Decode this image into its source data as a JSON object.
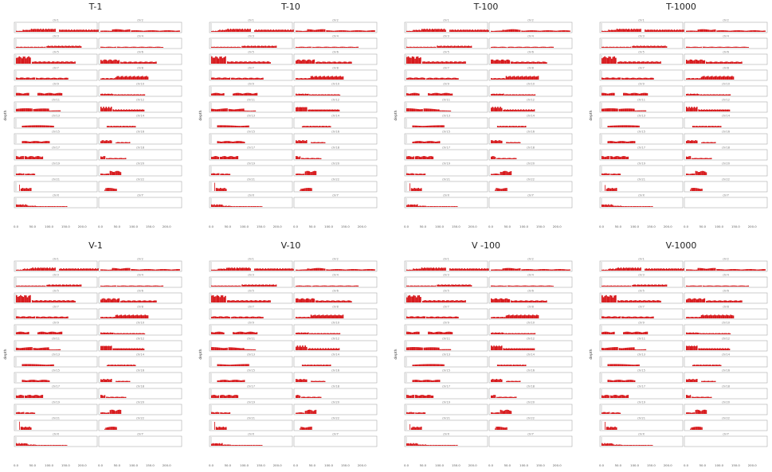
{
  "chart_data": [
    {
      "type": "bar",
      "title": "T-1",
      "xlabel": "Chromosome positon(Mb)",
      "ylabel": "depth"
    },
    {
      "type": "bar",
      "title": "T-10",
      "xlabel": "Chromosome position(Mb)",
      "ylabel": "depth"
    },
    {
      "type": "bar",
      "title": "T-100",
      "xlabel": "Chromosome position(Mb)",
      "ylabel": "depth"
    },
    {
      "type": "bar",
      "title": "T-1000",
      "xlabel": "Chromosome position(Mb)",
      "ylabel": "depth"
    },
    {
      "type": "bar",
      "title": "V-1",
      "xlabel": "Chromosome position(Mb)",
      "ylabel": "depth"
    },
    {
      "type": "bar",
      "title": "V-10",
      "xlabel": "Chromosome position(Mb)",
      "ylabel": "depth"
    },
    {
      "type": "bar",
      "title": "V -100",
      "xlabel": "Chromosome position(Mb)",
      "ylabel": "depth"
    },
    {
      "type": "bar",
      "title": "V-1000",
      "xlabel": "Chromosome position(Mb)",
      "ylabel": "depth"
    }
  ],
  "shared": {
    "xlim": [
      0,
      250
    ],
    "xticks": [
      "0.0",
      "50.0",
      "100.0",
      "150.0",
      "200.0"
    ],
    "bar_color": "#d7191c",
    "chromosomes": [
      {
        "name": "chr1",
        "segments": [
          [
            0,
            20,
            0.1
          ],
          [
            20,
            45,
            0.2
          ],
          [
            45,
            120,
            0.3
          ],
          [
            130,
            250,
            0.22
          ]
        ]
      },
      {
        "name": "chr2",
        "segments": [
          [
            0,
            35,
            0.12
          ],
          [
            35,
            90,
            0.25
          ],
          [
            92,
            240,
            0.15
          ]
        ]
      },
      {
        "name": "chr3",
        "segments": [
          [
            0,
            90,
            0.1
          ],
          [
            92,
            198,
            0.2
          ]
        ]
      },
      {
        "name": "chr4",
        "segments": [
          [
            0,
            48,
            0.1
          ],
          [
            50,
            190,
            0.1
          ]
        ]
      },
      {
        "name": "chr5",
        "segments": [
          [
            0,
            45,
            0.7
          ],
          [
            48,
            180,
            0.22
          ]
        ]
      },
      {
        "name": "chr6",
        "segments": [
          [
            0,
            58,
            0.4
          ],
          [
            60,
            170,
            0.2
          ]
        ]
      },
      {
        "name": "chr7",
        "segments": [
          [
            0,
            58,
            0.2
          ],
          [
            60,
            158,
            0.18
          ]
        ]
      },
      {
        "name": "chr8",
        "segments": [
          [
            0,
            45,
            0.15
          ],
          [
            45,
            145,
            0.35
          ]
        ]
      },
      {
        "name": "chr9",
        "segments": [
          [
            0,
            40,
            0.25
          ],
          [
            65,
            140,
            0.25
          ]
        ]
      },
      {
        "name": "chr10",
        "segments": [
          [
            0,
            40,
            0.18
          ],
          [
            41,
            135,
            0.12
          ]
        ]
      },
      {
        "name": "chr11",
        "segments": [
          [
            0,
            50,
            0.3
          ],
          [
            52,
            100,
            0.28
          ],
          [
            100,
            135,
            0.1
          ]
        ]
      },
      {
        "name": "chr12",
        "segments": [
          [
            0,
            35,
            0.45
          ],
          [
            37,
            133,
            0.2
          ]
        ]
      },
      {
        "name": "chr13",
        "segments": [
          [
            18,
            115,
            0.2
          ]
        ]
      },
      {
        "name": "chr14",
        "segments": [
          [
            19,
            107,
            0.15
          ]
        ]
      },
      {
        "name": "chr15",
        "segments": [
          [
            18,
            102,
            0.22
          ]
        ]
      },
      {
        "name": "chr16",
        "segments": [
          [
            0,
            35,
            0.3
          ],
          [
            46,
            90,
            0.12
          ]
        ]
      },
      {
        "name": "chr17",
        "segments": [
          [
            0,
            24,
            0.3
          ],
          [
            26,
            82,
            0.3
          ]
        ]
      },
      {
        "name": "chr18",
        "segments": [
          [
            0,
            15,
            0.3
          ],
          [
            17,
            78,
            0.12
          ]
        ]
      },
      {
        "name": "chr19",
        "segments": [
          [
            0,
            25,
            0.18
          ],
          [
            27,
            58,
            0.15
          ]
        ]
      },
      {
        "name": "chr20",
        "segments": [
          [
            0,
            27,
            0.15
          ],
          [
            28,
            63,
            0.4
          ]
        ]
      },
      {
        "name": "chr21",
        "segments": [
          [
            10,
            12,
            0.8
          ],
          [
            14,
            47,
            0.3
          ]
        ]
      },
      {
        "name": "chr22",
        "segments": [
          [
            12,
            14,
            0.15
          ],
          [
            15,
            50,
            0.3
          ]
        ]
      },
      {
        "name": "chrX",
        "segments": [
          [
            0,
            35,
            0.25
          ],
          [
            35,
            60,
            0.12
          ],
          [
            60,
            155,
            0.08
          ]
        ]
      },
      {
        "name": "chrY",
        "segments": []
      }
    ]
  }
}
